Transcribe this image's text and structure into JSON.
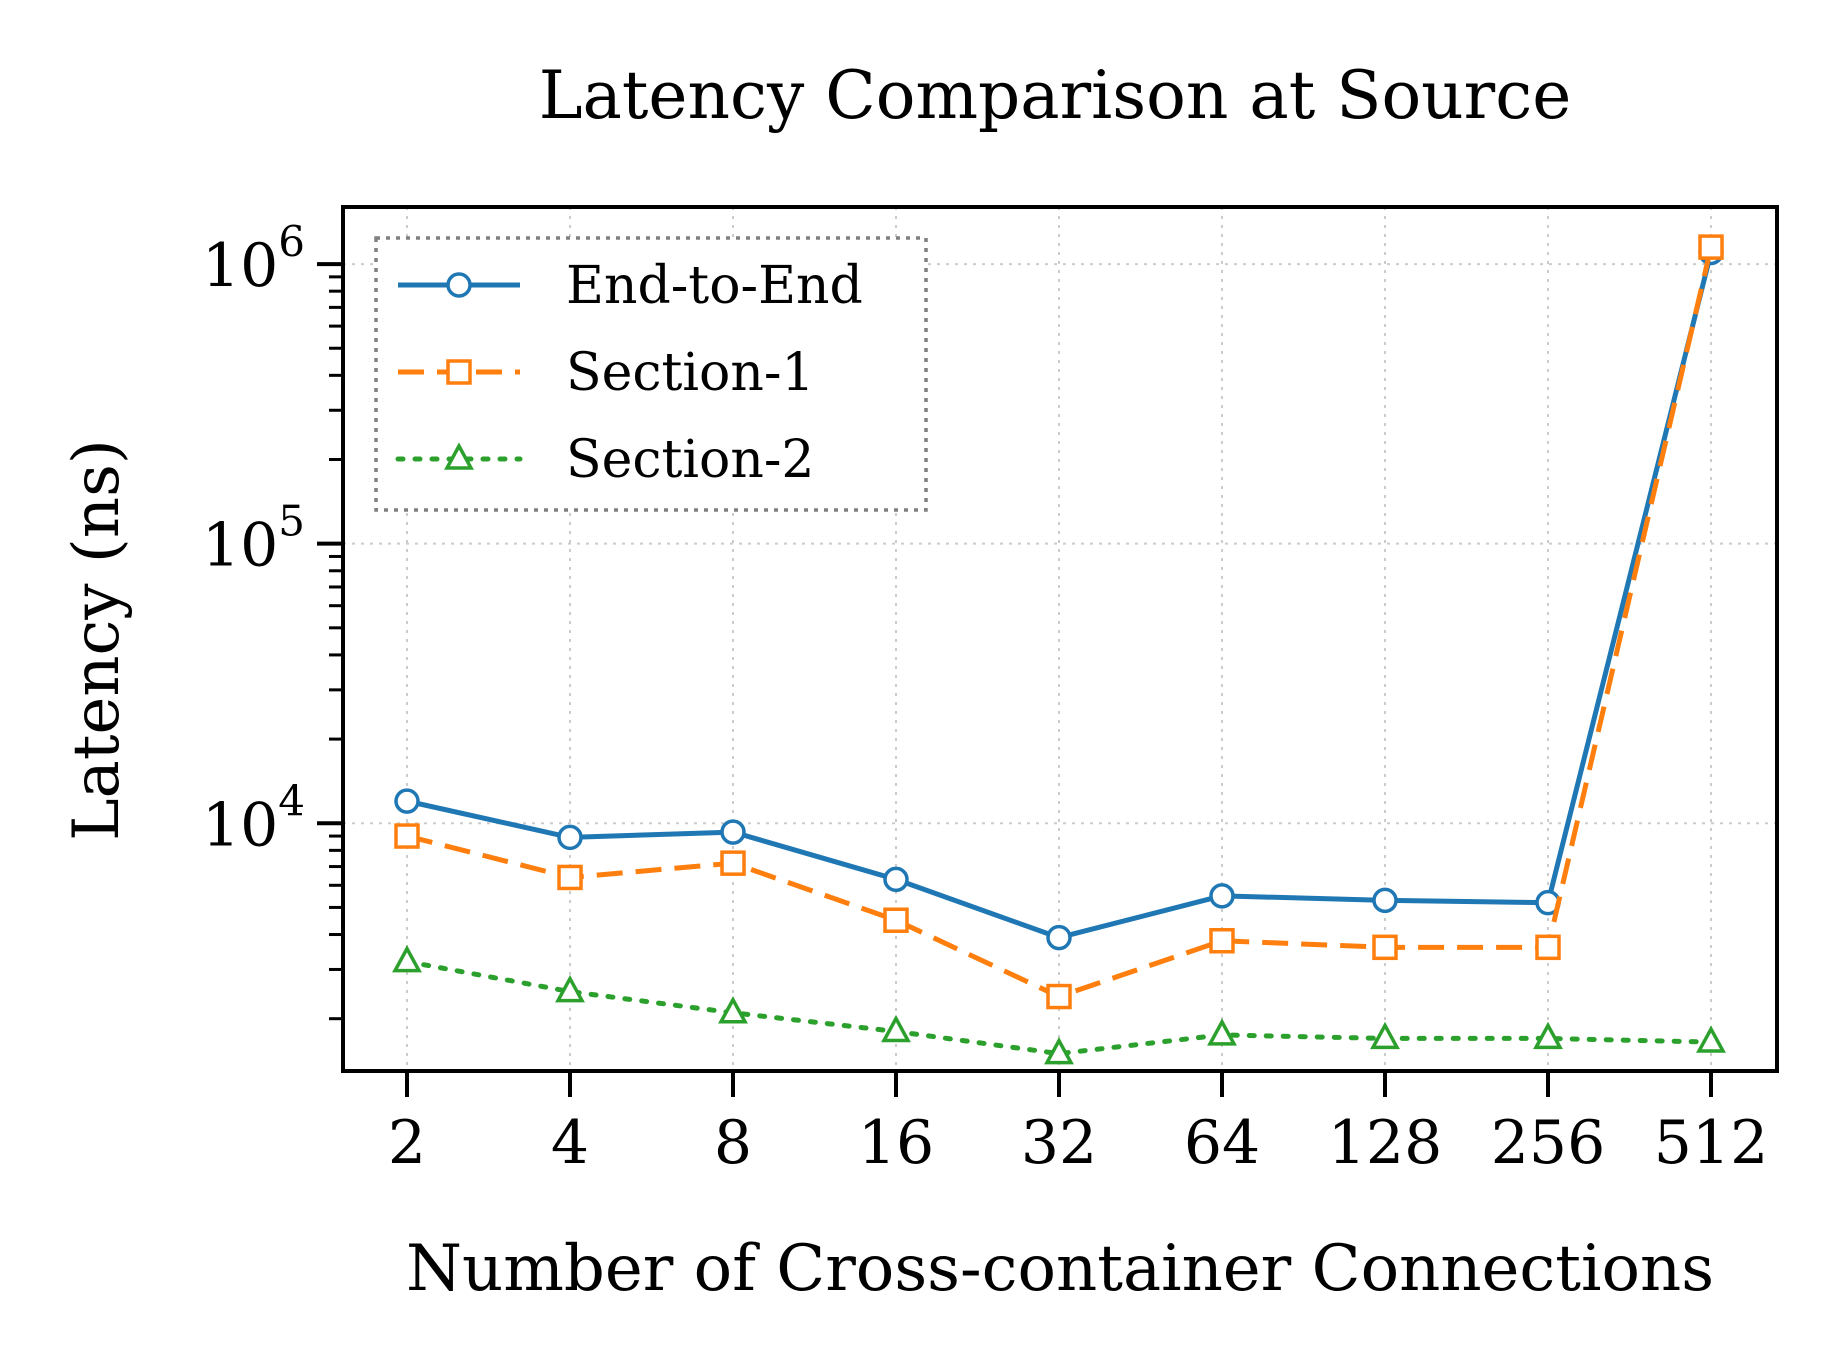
{
  "chart_data": {
    "type": "line",
    "title": "Latency Comparison at Source",
    "xlabel": "Number of Cross-container Connections",
    "ylabel": "Latency (ns)",
    "x_scale": "categorical",
    "y_scale": "log",
    "ylim": [
      1300,
      1600000
    ],
    "categories": [
      "2",
      "4",
      "8",
      "16",
      "32",
      "64",
      "128",
      "256",
      "512"
    ],
    "y_ticks": [
      {
        "value": 10000,
        "base": "10",
        "exp": "4"
      },
      {
        "value": 100000,
        "base": "10",
        "exp": "5"
      },
      {
        "value": 1000000,
        "base": "10",
        "exp": "6"
      }
    ],
    "grid": true,
    "legend_position": "top-left",
    "series": [
      {
        "name": "End-to-End",
        "color": "#1f77b4",
        "marker": "circle",
        "line": "solid",
        "values": [
          12000,
          8900,
          9300,
          6300,
          3900,
          5500,
          5300,
          5200,
          1100000
        ]
      },
      {
        "name": "Section-1",
        "color": "#ff7f0e",
        "marker": "square",
        "line": "dashed",
        "values": [
          9000,
          6400,
          7200,
          4500,
          2400,
          3800,
          3600,
          3600,
          1150000
        ]
      },
      {
        "name": "Section-2",
        "color": "#2ca02c",
        "marker": "triangle",
        "line": "dotted",
        "values": [
          3200,
          2500,
          2100,
          1800,
          1500,
          1750,
          1700,
          1700,
          1650
        ]
      }
    ]
  }
}
